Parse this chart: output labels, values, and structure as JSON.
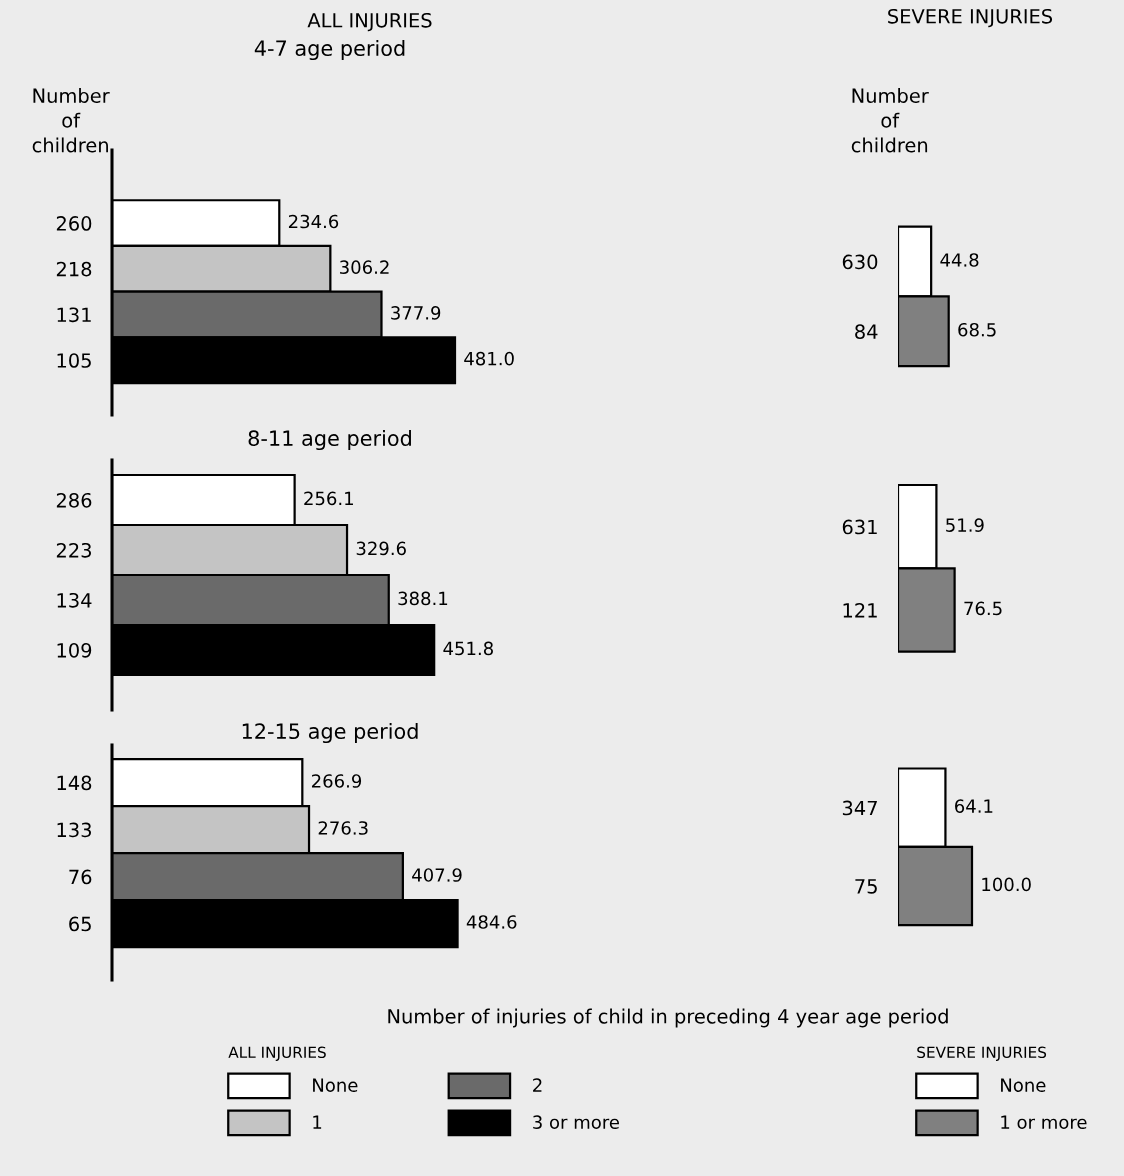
{
  "chart_data": [
    {
      "type": "bar",
      "orientation": "horizontal",
      "title": "4-7 age period",
      "ylabel": "Number\nof\nchildren",
      "annotations": [
        "ALL INJURIES"
      ],
      "categories": [
        "260",
        "218",
        "131",
        "105"
      ],
      "tick_labels": "y",
      "series": [
        {
          "color": "#ffffff",
          "values": [
            234.6,
            null,
            null,
            null
          ],
          "value_labels": [
            "234.6",
            null,
            null,
            null
          ]
        },
        {
          "color": "#c4c4c4",
          "values": [
            null,
            306.2,
            null,
            null
          ],
          "value_labels": [
            null,
            "306.2",
            null,
            null
          ]
        },
        {
          "color": "#6a6a6a",
          "values": [
            null,
            null,
            377.9,
            null
          ],
          "value_labels": [
            null,
            null,
            "377.9",
            null
          ]
        },
        {
          "color": "#000000",
          "values": [
            null,
            null,
            null,
            481.0
          ],
          "value_labels": [
            null,
            null,
            null,
            "481.0"
          ]
        }
      ]
    },
    {
      "type": "bar",
      "orientation": "horizontal",
      "ylabel": "Number\nof\nchildren",
      "annotations": [
        "SEVERE INJURIES"
      ],
      "categories": [
        "630",
        "84"
      ],
      "tick_labels": "y",
      "series": [
        {
          "color": "#ffffff",
          "values": [
            44.8,
            null
          ],
          "value_labels": [
            "44.8",
            null
          ]
        },
        {
          "color": "#808080",
          "values": [
            null,
            68.5
          ],
          "value_labels": [
            null,
            "68.5"
          ]
        }
      ]
    },
    {
      "type": "bar",
      "orientation": "horizontal",
      "title": "8-11 age period",
      "categories": [
        "286",
        "223",
        "134",
        "109"
      ],
      "tick_labels": "y",
      "series": [
        {
          "color": "#ffffff",
          "values": [
            256.1,
            null,
            null,
            null
          ],
          "value_labels": [
            "256.1",
            null,
            null,
            null
          ]
        },
        {
          "color": "#c4c4c4",
          "values": [
            null,
            329.6,
            null,
            null
          ],
          "value_labels": [
            null,
            "329.6",
            null,
            null
          ]
        },
        {
          "color": "#6a6a6a",
          "values": [
            null,
            null,
            388.1,
            null
          ],
          "value_labels": [
            null,
            null,
            "388.1",
            null
          ]
        },
        {
          "color": "#000000",
          "values": [
            null,
            null,
            null,
            451.8
          ],
          "value_labels": [
            null,
            null,
            null,
            "451.8"
          ]
        }
      ]
    },
    {
      "type": "bar",
      "orientation": "horizontal",
      "categories": [
        "631",
        "121"
      ],
      "tick_labels": "y",
      "series": [
        {
          "color": "#ffffff",
          "values": [
            51.9,
            null
          ],
          "value_labels": [
            "51.9",
            null
          ]
        },
        {
          "color": "#808080",
          "values": [
            null,
            76.5
          ],
          "value_labels": [
            null,
            "76.5"
          ]
        }
      ]
    },
    {
      "type": "bar",
      "orientation": "horizontal",
      "title": "12-15 age period",
      "annotations": [
        "Number of injuries of child in preceding 4 year age period"
      ],
      "categories": [
        "148",
        "133",
        "76",
        "65"
      ],
      "tick_labels": "y",
      "legend": "bottom",
      "legend_title": "ALL INJURIES",
      "series": [
        {
          "name": "None",
          "color": "#ffffff",
          "values": [
            266.9,
            null,
            null,
            null
          ],
          "value_labels": [
            "266.9",
            null,
            null,
            null
          ]
        },
        {
          "name": "1",
          "color": "#c4c4c4",
          "values": [
            null,
            276.3,
            null,
            null
          ],
          "value_labels": [
            null,
            "276.3",
            null,
            null
          ]
        },
        {
          "name": "2",
          "color": "#6a6a6a",
          "values": [
            null,
            null,
            407.9,
            null
          ],
          "value_labels": [
            null,
            null,
            "407.9",
            null
          ]
        },
        {
          "name": "3 or more",
          "color": "#000000",
          "values": [
            null,
            null,
            null,
            484.6
          ],
          "value_labels": [
            null,
            null,
            null,
            "484.6"
          ]
        }
      ]
    },
    {
      "type": "bar",
      "orientation": "horizontal",
      "categories": [
        "347",
        "75"
      ],
      "tick_labels": "y",
      "legend": "bottom",
      "legend_title": "SEVERE INJURIES",
      "series": [
        {
          "name": "None",
          "color": "#ffffff",
          "values": [
            64.1,
            null
          ],
          "value_labels": [
            "64.1",
            null
          ]
        },
        {
          "name": "1 or more",
          "color": "#808080",
          "values": [
            null,
            100.0
          ],
          "value_labels": [
            null,
            "100.0"
          ]
        }
      ]
    }
  ]
}
